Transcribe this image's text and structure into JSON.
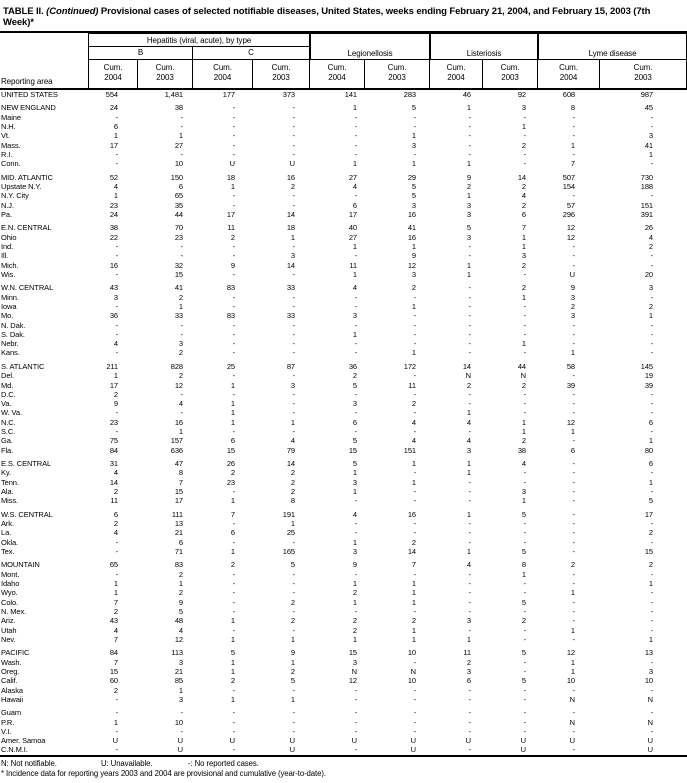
{
  "title": {
    "table_label": "TABLE II.",
    "continued": "(Continued)",
    "text": "Provisional cases of selected notifiable diseases, United States, weeks ending February 21, 2004, and February 15, 2003 (7th Week)*"
  },
  "header": {
    "reporting_area": "Reporting area",
    "hepatitis_group": "Hepatitis (viral, acute), by type",
    "hep_b": "B",
    "hep_c": "C",
    "legionellosis": "Legionellosis",
    "listeriosis": "Listeriosis",
    "lyme_disease": "Lyme disease",
    "cum": "Cum.",
    "y2004": "2004",
    "y2003": "2003"
  },
  "table": {
    "rows": [
      {
        "area": "UNITED STATES",
        "level": "national",
        "gap_before": false,
        "values": [
          "554",
          "1,481",
          "177",
          "373",
          "141",
          "283",
          "46",
          "92",
          "608",
          "987"
        ]
      },
      {
        "area": "NEW ENGLAND",
        "level": "region",
        "gap_before": true,
        "values": [
          "24",
          "38",
          "-",
          "-",
          "1",
          "5",
          "1",
          "3",
          "8",
          "45"
        ]
      },
      {
        "area": "Maine",
        "level": "state",
        "gap_before": false,
        "values": [
          "-",
          "-",
          "-",
          "-",
          "-",
          "-",
          "-",
          "-",
          "-",
          "-"
        ]
      },
      {
        "area": "N.H.",
        "level": "state",
        "gap_before": false,
        "values": [
          "6",
          "-",
          "-",
          "-",
          "-",
          "-",
          "-",
          "1",
          "-",
          "-"
        ]
      },
      {
        "area": "Vt.",
        "level": "state",
        "gap_before": false,
        "values": [
          "1",
          "1",
          "-",
          "-",
          "-",
          "1",
          "-",
          "-",
          "-",
          "3"
        ]
      },
      {
        "area": "Mass.",
        "level": "state",
        "gap_before": false,
        "values": [
          "17",
          "27",
          "-",
          "-",
          "-",
          "3",
          "-",
          "2",
          "1",
          "41"
        ]
      },
      {
        "area": "R.I.",
        "level": "state",
        "gap_before": false,
        "values": [
          "-",
          "-",
          "-",
          "-",
          "-",
          "-",
          "-",
          "-",
          "-",
          "1"
        ]
      },
      {
        "area": "Conn.",
        "level": "state",
        "gap_before": false,
        "values": [
          "-",
          "10",
          "U",
          "U",
          "1",
          "1",
          "1",
          "-",
          "7",
          "-"
        ]
      },
      {
        "area": "MID. ATLANTIC",
        "level": "region",
        "gap_before": true,
        "values": [
          "52",
          "150",
          "18",
          "16",
          "27",
          "29",
          "9",
          "14",
          "507",
          "730"
        ]
      },
      {
        "area": "Upstate N.Y.",
        "level": "state",
        "gap_before": false,
        "values": [
          "4",
          "6",
          "1",
          "2",
          "4",
          "5",
          "2",
          "2",
          "154",
          "188"
        ]
      },
      {
        "area": "N.Y. City",
        "level": "state",
        "gap_before": false,
        "values": [
          "1",
          "65",
          "-",
          "-",
          "-",
          "5",
          "1",
          "4",
          "-",
          "-"
        ]
      },
      {
        "area": "N.J.",
        "level": "state",
        "gap_before": false,
        "values": [
          "23",
          "35",
          "-",
          "-",
          "6",
          "3",
          "3",
          "2",
          "57",
          "151"
        ]
      },
      {
        "area": "Pa.",
        "level": "state",
        "gap_before": false,
        "values": [
          "24",
          "44",
          "17",
          "14",
          "17",
          "16",
          "3",
          "6",
          "296",
          "391"
        ]
      },
      {
        "area": "E.N. CENTRAL",
        "level": "region",
        "gap_before": true,
        "values": [
          "38",
          "70",
          "11",
          "18",
          "40",
          "41",
          "5",
          "7",
          "12",
          "26"
        ]
      },
      {
        "area": "Ohio",
        "level": "state",
        "gap_before": false,
        "values": [
          "22",
          "23",
          "2",
          "1",
          "27",
          "16",
          "3",
          "1",
          "12",
          "4"
        ]
      },
      {
        "area": "Ind.",
        "level": "state",
        "gap_before": false,
        "values": [
          "-",
          "-",
          "-",
          "-",
          "1",
          "1",
          "-",
          "1",
          "-",
          "2"
        ]
      },
      {
        "area": "Ill.",
        "level": "state",
        "gap_before": false,
        "values": [
          "-",
          "-",
          "-",
          "3",
          "-",
          "9",
          "-",
          "3",
          "-",
          "-"
        ]
      },
      {
        "area": "Mich.",
        "level": "state",
        "gap_before": false,
        "values": [
          "16",
          "32",
          "9",
          "14",
          "11",
          "12",
          "1",
          "2",
          "-",
          "-"
        ]
      },
      {
        "area": "Wis.",
        "level": "state",
        "gap_before": false,
        "values": [
          "-",
          "15",
          "-",
          "-",
          "1",
          "3",
          "1",
          "-",
          "U",
          "20"
        ]
      },
      {
        "area": "W.N. CENTRAL",
        "level": "region",
        "gap_before": true,
        "values": [
          "43",
          "41",
          "83",
          "33",
          "4",
          "2",
          "-",
          "2",
          "9",
          "3"
        ]
      },
      {
        "area": "Minn.",
        "level": "state",
        "gap_before": false,
        "values": [
          "3",
          "2",
          "-",
          "-",
          "-",
          "-",
          "-",
          "1",
          "3",
          "-"
        ]
      },
      {
        "area": "Iowa",
        "level": "state",
        "gap_before": false,
        "values": [
          "-",
          "1",
          "-",
          "-",
          "-",
          "1",
          "-",
          "-",
          "2",
          "2"
        ]
      },
      {
        "area": "Mo.",
        "level": "state",
        "gap_before": false,
        "values": [
          "36",
          "33",
          "83",
          "33",
          "3",
          "-",
          "-",
          "-",
          "3",
          "1"
        ]
      },
      {
        "area": "N. Dak.",
        "level": "state",
        "gap_before": false,
        "values": [
          "-",
          "-",
          "-",
          "-",
          "-",
          "-",
          "-",
          "-",
          "-",
          "-"
        ]
      },
      {
        "area": "S. Dak.",
        "level": "state",
        "gap_before": false,
        "values": [
          "-",
          "-",
          "-",
          "-",
          "1",
          "-",
          "-",
          "-",
          "-",
          "-"
        ]
      },
      {
        "area": "Nebr.",
        "level": "state",
        "gap_before": false,
        "values": [
          "4",
          "3",
          "-",
          "-",
          "-",
          "-",
          "-",
          "1",
          "-",
          "-"
        ]
      },
      {
        "area": "Kans.",
        "level": "state",
        "gap_before": false,
        "values": [
          "-",
          "2",
          "-",
          "-",
          "-",
          "1",
          "-",
          "-",
          "1",
          "-"
        ]
      },
      {
        "area": "S. ATLANTIC",
        "level": "region",
        "gap_before": true,
        "values": [
          "211",
          "828",
          "25",
          "87",
          "36",
          "172",
          "14",
          "44",
          "58",
          "145"
        ]
      },
      {
        "area": "Del.",
        "level": "state",
        "gap_before": false,
        "values": [
          "1",
          "2",
          "-",
          "-",
          "2",
          "-",
          "N",
          "N",
          "-",
          "19"
        ]
      },
      {
        "area": "Md.",
        "level": "state",
        "gap_before": false,
        "values": [
          "17",
          "12",
          "1",
          "3",
          "5",
          "11",
          "2",
          "2",
          "39",
          "39"
        ]
      },
      {
        "area": "D.C.",
        "level": "state",
        "gap_before": false,
        "values": [
          "2",
          "-",
          "-",
          "-",
          "-",
          "-",
          "-",
          "-",
          "-",
          "-"
        ]
      },
      {
        "area": "Va.",
        "level": "state",
        "gap_before": false,
        "values": [
          "9",
          "4",
          "1",
          "-",
          "3",
          "2",
          "-",
          "-",
          "-",
          "-"
        ]
      },
      {
        "area": "W. Va.",
        "level": "state",
        "gap_before": false,
        "values": [
          "-",
          "-",
          "1",
          "-",
          "-",
          "-",
          "1",
          "-",
          "-",
          "-"
        ]
      },
      {
        "area": "N.C.",
        "level": "state",
        "gap_before": false,
        "values": [
          "23",
          "16",
          "1",
          "1",
          "6",
          "4",
          "4",
          "1",
          "12",
          "6"
        ]
      },
      {
        "area": "S.C.",
        "level": "state",
        "gap_before": false,
        "values": [
          "-",
          "1",
          "-",
          "-",
          "-",
          "-",
          "-",
          "1",
          "1",
          "-"
        ]
      },
      {
        "area": "Ga.",
        "level": "state",
        "gap_before": false,
        "values": [
          "75",
          "157",
          "6",
          "4",
          "5",
          "4",
          "4",
          "2",
          "-",
          "1"
        ]
      },
      {
        "area": "Fla.",
        "level": "state",
        "gap_before": false,
        "values": [
          "84",
          "636",
          "15",
          "79",
          "15",
          "151",
          "3",
          "38",
          "6",
          "80"
        ]
      },
      {
        "area": "E.S. CENTRAL",
        "level": "region",
        "gap_before": true,
        "values": [
          "31",
          "47",
          "26",
          "14",
          "5",
          "1",
          "1",
          "4",
          "-",
          "6"
        ]
      },
      {
        "area": "Ky.",
        "level": "state",
        "gap_before": false,
        "values": [
          "4",
          "8",
          "2",
          "2",
          "1",
          "-",
          "1",
          "-",
          "-",
          "-"
        ]
      },
      {
        "area": "Tenn.",
        "level": "state",
        "gap_before": false,
        "values": [
          "14",
          "7",
          "23",
          "2",
          "3",
          "1",
          "-",
          "-",
          "-",
          "1"
        ]
      },
      {
        "area": "Ala.",
        "level": "state",
        "gap_before": false,
        "values": [
          "2",
          "15",
          "-",
          "2",
          "1",
          "-",
          "-",
          "3",
          "-",
          "-"
        ]
      },
      {
        "area": "Miss.",
        "level": "state",
        "gap_before": false,
        "values": [
          "11",
          "17",
          "1",
          "8",
          "-",
          "-",
          "-",
          "1",
          "-",
          "5"
        ]
      },
      {
        "area": "W.S. CENTRAL",
        "level": "region",
        "gap_before": true,
        "values": [
          "6",
          "111",
          "7",
          "191",
          "4",
          "16",
          "1",
          "5",
          "-",
          "17"
        ]
      },
      {
        "area": "Ark.",
        "level": "state",
        "gap_before": false,
        "values": [
          "2",
          "13",
          "-",
          "1",
          "-",
          "-",
          "-",
          "-",
          "-",
          "-"
        ]
      },
      {
        "area": "La.",
        "level": "state",
        "gap_before": false,
        "values": [
          "4",
          "21",
          "6",
          "25",
          "-",
          "-",
          "-",
          "-",
          "-",
          "2"
        ]
      },
      {
        "area": "Okla.",
        "level": "state",
        "gap_before": false,
        "values": [
          "-",
          "6",
          "-",
          "-",
          "1",
          "2",
          "-",
          "-",
          "-",
          "-"
        ]
      },
      {
        "area": "Tex.",
        "level": "state",
        "gap_before": false,
        "values": [
          "-",
          "71",
          "1",
          "165",
          "3",
          "14",
          "1",
          "5",
          "-",
          "15"
        ]
      },
      {
        "area": "MOUNTAIN",
        "level": "region",
        "gap_before": true,
        "values": [
          "65",
          "83",
          "2",
          "5",
          "9",
          "7",
          "4",
          "8",
          "2",
          "2"
        ]
      },
      {
        "area": "Mont.",
        "level": "state",
        "gap_before": false,
        "values": [
          "-",
          "2",
          "-",
          "-",
          "-",
          "-",
          "-",
          "1",
          "-",
          "-"
        ]
      },
      {
        "area": "Idaho",
        "level": "state",
        "gap_before": false,
        "values": [
          "1",
          "1",
          "-",
          "-",
          "1",
          "1",
          "-",
          "-",
          "-",
          "1"
        ]
      },
      {
        "area": "Wyo.",
        "level": "state",
        "gap_before": false,
        "values": [
          "1",
          "2",
          "-",
          "-",
          "2",
          "1",
          "-",
          "-",
          "1",
          "-"
        ]
      },
      {
        "area": "Colo.",
        "level": "state",
        "gap_before": false,
        "values": [
          "7",
          "9",
          "-",
          "2",
          "1",
          "1",
          "-",
          "5",
          "-",
          "-"
        ]
      },
      {
        "area": "N. Mex.",
        "level": "state",
        "gap_before": false,
        "values": [
          "2",
          "5",
          "-",
          "-",
          "-",
          "-",
          "-",
          "-",
          "-",
          "-"
        ]
      },
      {
        "area": "Ariz.",
        "level": "state",
        "gap_before": false,
        "values": [
          "43",
          "48",
          "1",
          "2",
          "2",
          "2",
          "3",
          "2",
          "-",
          "-"
        ]
      },
      {
        "area": "Utah",
        "level": "state",
        "gap_before": false,
        "values": [
          "4",
          "4",
          "-",
          "-",
          "2",
          "1",
          "-",
          "-",
          "1",
          "-"
        ]
      },
      {
        "area": "Nev.",
        "level": "state",
        "gap_before": false,
        "values": [
          "7",
          "12",
          "1",
          "1",
          "1",
          "1",
          "1",
          "-",
          "-",
          "1"
        ]
      },
      {
        "area": "PACIFIC",
        "level": "region",
        "gap_before": true,
        "values": [
          "84",
          "113",
          "5",
          "9",
          "15",
          "10",
          "11",
          "5",
          "12",
          "13"
        ]
      },
      {
        "area": "Wash.",
        "level": "state",
        "gap_before": false,
        "values": [
          "7",
          "3",
          "1",
          "1",
          "3",
          "-",
          "2",
          "-",
          "1",
          "-"
        ]
      },
      {
        "area": "Oreg.",
        "level": "state",
        "gap_before": false,
        "values": [
          "15",
          "21",
          "1",
          "2",
          "N",
          "N",
          "3",
          "-",
          "1",
          "3"
        ]
      },
      {
        "area": "Calif.",
        "level": "state",
        "gap_before": false,
        "values": [
          "60",
          "85",
          "2",
          "5",
          "12",
          "10",
          "6",
          "5",
          "10",
          "10"
        ]
      },
      {
        "area": "Alaska",
        "level": "state",
        "gap_before": false,
        "values": [
          "2",
          "1",
          "-",
          "-",
          "-",
          "-",
          "-",
          "-",
          "-",
          "-"
        ]
      },
      {
        "area": "Hawaii",
        "level": "state",
        "gap_before": false,
        "values": [
          "-",
          "3",
          "1",
          "1",
          "-",
          "-",
          "-",
          "-",
          "N",
          "N"
        ]
      },
      {
        "area": "Guam",
        "level": "territory",
        "gap_before": true,
        "values": [
          "-",
          "-",
          "-",
          "-",
          "-",
          "-",
          "-",
          "-",
          "-",
          "-"
        ]
      },
      {
        "area": "P.R.",
        "level": "territory",
        "gap_before": false,
        "values": [
          "1",
          "10",
          "-",
          "-",
          "-",
          "-",
          "-",
          "-",
          "N",
          "N"
        ]
      },
      {
        "area": "V.I.",
        "level": "territory",
        "gap_before": false,
        "values": [
          "-",
          "-",
          "-",
          "-",
          "-",
          "-",
          "-",
          "-",
          "-",
          "-"
        ]
      },
      {
        "area": "Amer. Samoa",
        "level": "territory",
        "gap_before": false,
        "values": [
          "U",
          "U",
          "U",
          "U",
          "U",
          "U",
          "U",
          "U",
          "U",
          "U"
        ]
      },
      {
        "area": "C.N.M.I.",
        "level": "territory",
        "gap_before": false,
        "values": [
          "-",
          "U",
          "-",
          "U",
          "-",
          "U",
          "-",
          "U",
          "-",
          "U"
        ]
      }
    ]
  },
  "footnotes": {
    "n": "N: Not notifiable.",
    "u": "U: Unavailable.",
    "dash": "-: No reported cases.",
    "incidence": "* Incidence data for reporting years 2003 and 2004 are provisional and cumulative (year-to-date)."
  }
}
